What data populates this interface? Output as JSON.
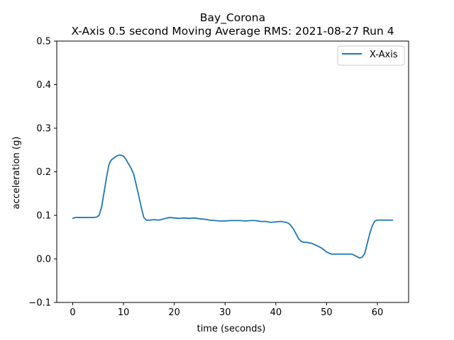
{
  "chart_data": {
    "type": "line",
    "title": "Bay_Corona",
    "subtitle": "X-Axis 0.5 second Moving Average RMS: 2021-08-27 Run 4",
    "xlabel": "time (seconds)",
    "ylabel": "acceleration (g)",
    "xlim": [
      -3.15,
      66.15
    ],
    "ylim": [
      -0.1,
      0.5
    ],
    "x_ticks": [
      0,
      10,
      20,
      30,
      40,
      50,
      60
    ],
    "y_ticks": [
      -0.1,
      0.0,
      0.1,
      0.2,
      0.3,
      0.4,
      0.5
    ],
    "x_tick_labels": [
      "0",
      "10",
      "20",
      "30",
      "40",
      "50",
      "60"
    ],
    "y_tick_labels": [
      "−0.1",
      "0.0",
      "0.1",
      "0.2",
      "0.3",
      "0.4",
      "0.5"
    ],
    "grid": false,
    "legend_position": "upper-right",
    "series": [
      {
        "name": "X-Axis",
        "color": "#1f77b4",
        "x": [
          0,
          0.5,
          1,
          2,
          3,
          4,
          4.7,
          5.2,
          5.7,
          6.2,
          6.7,
          7.1,
          7.5,
          8,
          8.5,
          9,
          9.5,
          10,
          10.5,
          11,
          11.5,
          12,
          12.5,
          13,
          13.5,
          14,
          14.5,
          15,
          16,
          17,
          18,
          19,
          20,
          21,
          22,
          23,
          24,
          25,
          26,
          27,
          28,
          29,
          30,
          31,
          32,
          33,
          34,
          35,
          36,
          37,
          38,
          39,
          40,
          41,
          42,
          42.5,
          43,
          43.5,
          44,
          44.5,
          45,
          45.5,
          46,
          47,
          48,
          49,
          50,
          50.5,
          51,
          52,
          53,
          54,
          55,
          55.5,
          56,
          56.5,
          57,
          57.5,
          58,
          58.5,
          59,
          59.5,
          60,
          61,
          62,
          63
        ],
        "values": [
          0.093,
          0.095,
          0.095,
          0.095,
          0.095,
          0.095,
          0.096,
          0.1,
          0.12,
          0.155,
          0.19,
          0.215,
          0.226,
          0.231,
          0.235,
          0.238,
          0.238,
          0.236,
          0.228,
          0.218,
          0.208,
          0.195,
          0.17,
          0.145,
          0.118,
          0.095,
          0.089,
          0.089,
          0.09,
          0.089,
          0.092,
          0.095,
          0.094,
          0.093,
          0.094,
          0.093,
          0.094,
          0.092,
          0.091,
          0.089,
          0.088,
          0.087,
          0.087,
          0.088,
          0.088,
          0.088,
          0.087,
          0.088,
          0.088,
          0.086,
          0.086,
          0.084,
          0.085,
          0.086,
          0.084,
          0.082,
          0.076,
          0.068,
          0.057,
          0.046,
          0.04,
          0.038,
          0.038,
          0.036,
          0.031,
          0.025,
          0.016,
          0.013,
          0.011,
          0.011,
          0.011,
          0.011,
          0.011,
          0.008,
          0.005,
          0.002,
          0.004,
          0.012,
          0.035,
          0.058,
          0.076,
          0.087,
          0.089,
          0.089,
          0.089,
          0.089
        ]
      }
    ]
  }
}
